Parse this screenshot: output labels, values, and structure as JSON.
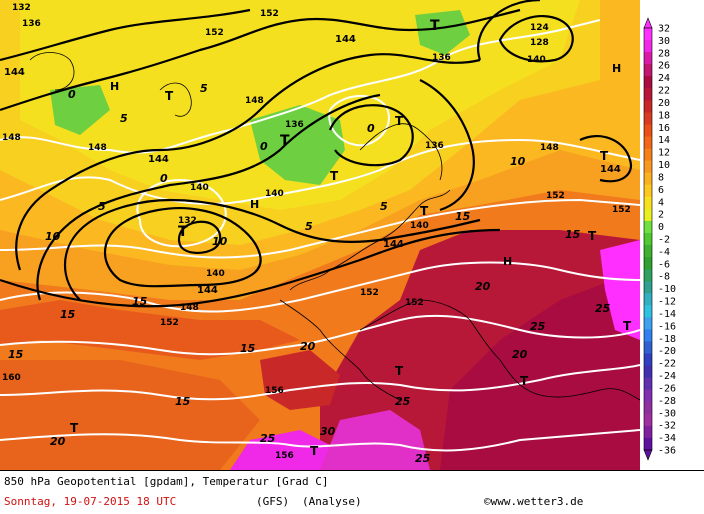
{
  "footer": {
    "title": "850 hPa Geopotential [gpdam], Temperatur [Grad C]",
    "date": "Sonntag, 19-07-2015  18 UTC",
    "model": "(GFS)",
    "analysis": "(Analyse)",
    "copyright": "©www.wetter3.de"
  },
  "legend": {
    "labels": [
      "32",
      "30",
      "28",
      "26",
      "24",
      "22",
      "20",
      "18",
      "16",
      "14",
      "12",
      "10",
      "8",
      "6",
      "4",
      "2",
      "0",
      "-2",
      "-4",
      "-6",
      "-8",
      "-10",
      "-12",
      "-14",
      "-16",
      "-18",
      "-20",
      "-22",
      "-24",
      "-26",
      "-28",
      "-30",
      "-32",
      "-34",
      "-36"
    ],
    "colors": [
      "#ff30ff",
      "#f028e8",
      "#d81ca8",
      "#c01870",
      "#a80c40",
      "#b81838",
      "#c82828",
      "#d83c20",
      "#e85018",
      "#f06818",
      "#f58018",
      "#f89820",
      "#fbb020",
      "#fdc820",
      "#f8e020",
      "#e8f020",
      "#70e040",
      "#50c830",
      "#40b030",
      "#30a030",
      "#30a060",
      "#30a090",
      "#30b0c0",
      "#30c0e0",
      "#40a0f0",
      "#3080f0",
      "#3060d0",
      "#3040c0",
      "#4030b0",
      "#6030b0",
      "#8030b0",
      "#9030a0",
      "#a030a0",
      "#8020a0",
      "#6010a0"
    ]
  },
  "map": {
    "geopotential_labels": [
      "132",
      "136",
      "140",
      "144",
      "148",
      "152",
      "156",
      "160",
      "124",
      "128"
    ],
    "temperature_labels": [
      "0",
      "5",
      "10",
      "15",
      "20",
      "25",
      "30"
    ],
    "pressure_labels": [
      "H",
      "T"
    ]
  }
}
